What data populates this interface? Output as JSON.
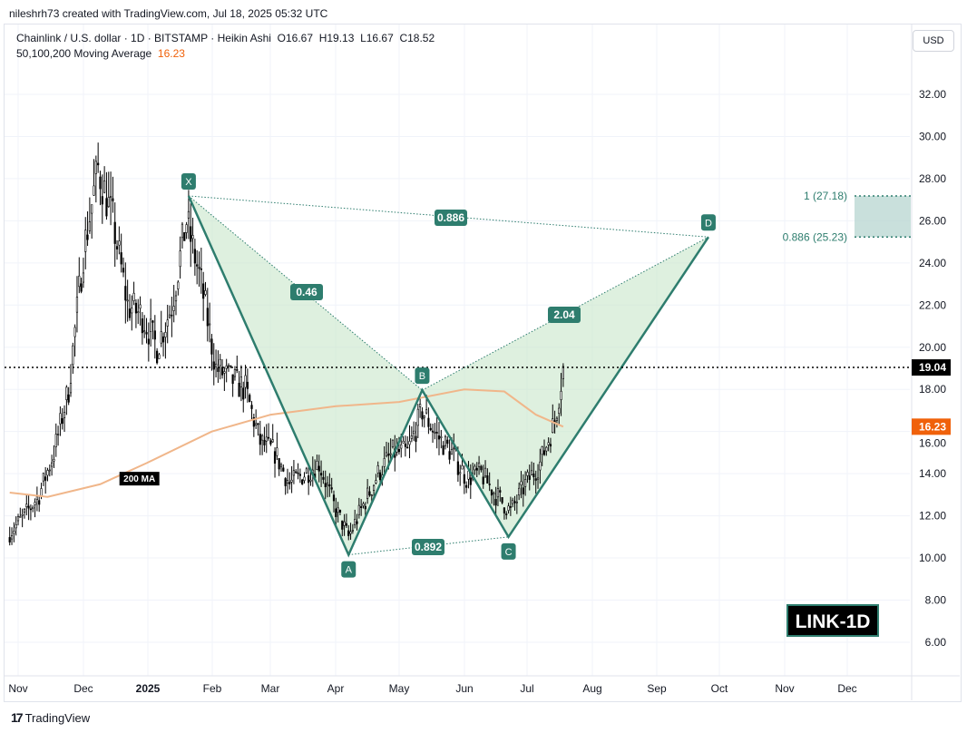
{
  "credit": "nileshrh73 created with TradingView.com, Jul 18, 2025 05:32 UTC",
  "legend": {
    "symbol": "Chainlink / U.S. dollar · 1D · BITSTAMP · Heikin Ashi",
    "open": "O16.67",
    "high": "H19.13",
    "low": "L16.67",
    "close": "C18.52",
    "ma_label": "50,100,200 Moving Average",
    "ma_value": "16.23"
  },
  "currency_button": "USD",
  "footer": {
    "brand": "TradingView"
  },
  "watermark": "LINK-1D",
  "colors": {
    "pattern": "#2e7d6e",
    "pattern_fill": "#c8e6c9",
    "ma": "#f0b68a",
    "ma_badge": "#f0610a",
    "target_zone": "#b2d3cd"
  },
  "chart_data": {
    "type": "candlestick",
    "yticks": [
      "32.00",
      "30.00",
      "28.00",
      "26.00",
      "24.00",
      "22.00",
      "20.00",
      "18.00",
      "16.00",
      "14.00",
      "12.00",
      "10.00",
      "8.00",
      "6.00"
    ],
    "ylim": [
      5,
      34
    ],
    "xticks": [
      "Nov",
      "Dec",
      "2025",
      "Feb",
      "Mar",
      "Apr",
      "May",
      "Jun",
      "Jul",
      "Aug",
      "Sep",
      "Oct",
      "Nov",
      "Dec"
    ],
    "price_closes_weekly": [
      [
        "2024-10-28",
        11.2
      ],
      [
        "2024-11-04",
        12.0
      ],
      [
        "2024-11-11",
        13.0
      ],
      [
        "2024-11-18",
        15.0
      ],
      [
        "2024-11-25",
        18.0
      ],
      [
        "2024-12-02",
        24.5
      ],
      [
        "2024-12-09",
        28.5
      ],
      [
        "2024-12-16",
        26.0
      ],
      [
        "2024-12-23",
        22.0
      ],
      [
        "2024-12-30",
        21.5
      ],
      [
        "2025-01-06",
        20.0
      ],
      [
        "2025-01-13",
        22.0
      ],
      [
        "2025-01-20",
        26.0
      ],
      [
        "2025-01-27",
        23.0
      ],
      [
        "2025-02-03",
        19.0
      ],
      [
        "2025-02-10",
        18.5
      ],
      [
        "2025-02-17",
        18.0
      ],
      [
        "2025-02-24",
        15.5
      ],
      [
        "2025-03-03",
        15.0
      ],
      [
        "2025-03-10",
        13.5
      ],
      [
        "2025-03-17",
        14.0
      ],
      [
        "2025-03-24",
        14.5
      ],
      [
        "2025-03-31",
        12.5
      ],
      [
        "2025-04-07",
        11.0
      ],
      [
        "2025-04-14",
        12.5
      ],
      [
        "2025-04-21",
        14.0
      ],
      [
        "2025-04-28",
        15.0
      ],
      [
        "2025-05-05",
        15.0
      ],
      [
        "2025-05-12",
        17.0
      ],
      [
        "2025-05-19",
        15.8
      ],
      [
        "2025-05-26",
        15.0
      ],
      [
        "2025-06-02",
        13.8
      ],
      [
        "2025-06-09",
        14.0
      ],
      [
        "2025-06-16",
        13.0
      ],
      [
        "2025-06-23",
        12.2
      ],
      [
        "2025-06-30",
        13.5
      ],
      [
        "2025-07-07",
        14.5
      ],
      [
        "2025-07-14",
        16.5
      ],
      [
        "2025-07-18",
        19.0
      ]
    ],
    "ma200": [
      [
        "2024-10-28",
        13.1
      ],
      [
        "2024-11-15",
        12.9
      ],
      [
        "2024-12-10",
        13.5
      ],
      [
        "2025-01-01",
        14.5
      ],
      [
        "2025-02-01",
        16.0
      ],
      [
        "2025-03-01",
        16.8
      ],
      [
        "2025-04-01",
        17.2
      ],
      [
        "2025-05-01",
        17.4
      ],
      [
        "2025-06-01",
        18.0
      ],
      [
        "2025-06-20",
        17.9
      ],
      [
        "2025-07-05",
        16.8
      ],
      [
        "2025-07-18",
        16.23
      ]
    ],
    "last_price": "19.04",
    "ma_price": "16.23",
    "ma_tag": "200 MA",
    "pattern": {
      "points": [
        {
          "label": "X",
          "date": "2025-01-21",
          "price": 27.18
        },
        {
          "label": "A",
          "date": "2025-04-07",
          "price": 10.15
        },
        {
          "label": "B",
          "date": "2025-05-12",
          "price": 17.96
        },
        {
          "label": "C",
          "date": "2025-06-22",
          "price": 11.0
        },
        {
          "label": "D",
          "date": "2025-09-25",
          "price": 25.23
        }
      ],
      "ratios": {
        "XB": "0.46",
        "AC": "0.892",
        "BD": "2.04",
        "XD": "0.886"
      }
    },
    "target_zone": {
      "upper_label": "1 (27.18)",
      "lower_label": "0.886 (25.23)",
      "upper": 27.18,
      "lower": 25.23
    }
  }
}
